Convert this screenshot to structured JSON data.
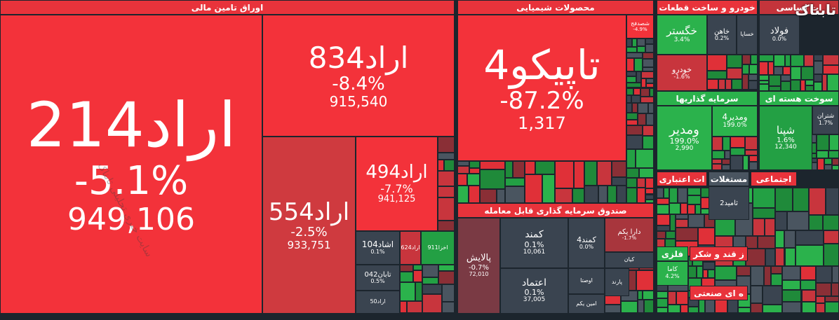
{
  "sectors": [
    {
      "title": "اوراق تامین مالی",
      "tiles": [
        {
          "name": "اراد214",
          "change": "-5.1%",
          "value": "949,106"
        },
        {
          "name": "اراد834",
          "change": "-8.4%",
          "value": "915,540"
        },
        {
          "name": "اراد554",
          "change": "-2.5%",
          "value": "933,751"
        },
        {
          "name": "اراد494",
          "change": "-7.7%",
          "value": "941,125"
        },
        {
          "name": "اشاد104",
          "change": "0.1%"
        },
        {
          "name": "تابان042",
          "change": "0.5%"
        },
        {
          "name": "اراد50"
        },
        {
          "name": "اراد624"
        },
        {
          "name": "اخزا911"
        }
      ]
    },
    {
      "title": "محصولات شیمیایی",
      "tiles": [
        {
          "name": "تاپیکو4",
          "change": "-87.2%",
          "value": "1,317"
        },
        {
          "name": "شصدفج",
          "change": "-4.9%"
        }
      ]
    },
    {
      "title": "صندوق سرمایه گذاری قابل معامله",
      "tiles": [
        {
          "name": "پالایش",
          "change": "-0.7%",
          "value": "72,010"
        },
        {
          "name": "کمند",
          "change": "0.1%",
          "value": "10,061"
        },
        {
          "name": "کمند4",
          "change": "0.0%"
        },
        {
          "name": "دارا یکم",
          "change": "-1.7%"
        },
        {
          "name": "اعتماد",
          "change": "0.1%",
          "value": "37,005"
        },
        {
          "name": "اوصتا"
        },
        {
          "name": "امین یکم"
        },
        {
          "name": "پارند"
        },
        {
          "name": "کیان"
        }
      ]
    },
    {
      "title": "خودرو و ساخت قطعات",
      "tiles": [
        {
          "name": "خگستر",
          "change": "3.4%"
        },
        {
          "name": "خاهن",
          "change": "0.2%"
        },
        {
          "name": "خساپا"
        },
        {
          "name": "خودرو",
          "change": "-1.6%"
        }
      ]
    },
    {
      "title": "ات اساسی",
      "tiles": [
        {
          "name": "فولاد",
          "change": "0.0%"
        }
      ]
    },
    {
      "title": "سرمایه گذاریها",
      "tiles": [
        {
          "name": "ومدیر",
          "change": "199.0%",
          "value": "2,990"
        },
        {
          "name": "ومدیر4",
          "change": "199.0%"
        }
      ]
    },
    {
      "title": "سوخت هسته ای",
      "tiles": [
        {
          "name": "شپنا",
          "change": "1.6%",
          "value": "12,340"
        },
        {
          "name": "شتران",
          "change": "1.7%"
        }
      ]
    },
    {
      "title": "ات اعتباری",
      "tiles": []
    },
    {
      "title": "مستغلات",
      "tiles": [
        {
          "name": "ثامید2"
        }
      ]
    },
    {
      "title": "اجتماعی",
      "tiles": []
    },
    {
      "title": "فلزی",
      "tiles": [
        {
          "name": "کاما",
          "change": "4.2%"
        }
      ]
    },
    {
      "title": "ز قند و شکر",
      "tiles": []
    },
    {
      "title": "ه ای صنعتی",
      "tiles": []
    }
  ],
  "watermark": "سایت خبری تحلیلی تابناک",
  "logo": "تابناک"
}
